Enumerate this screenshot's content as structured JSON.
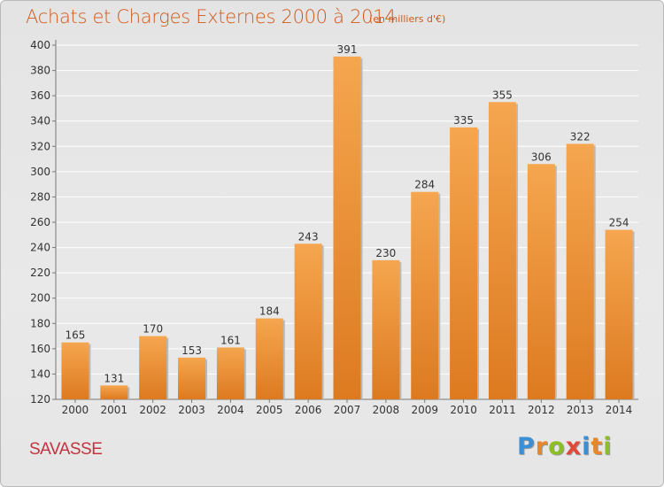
{
  "title": "Achats et Charges Externes 2000 à 2014",
  "unit_note": "(en milliers d'€)",
  "commune": "SAVASSE",
  "logo": {
    "letters": [
      "P",
      "r",
      "o",
      "x",
      "i",
      "t",
      "i"
    ],
    "colors": [
      "#3a8fd6",
      "#e8862b",
      "#8cbf26",
      "#e04a3a",
      "#3a8fd6",
      "#e8862b",
      "#8cbf26"
    ]
  },
  "colors": {
    "bar_top": "#f5a64f",
    "bar_bottom": "#dd7a20",
    "title": "#cf5a1b",
    "commune": "#c2343f"
  },
  "chart_data": {
    "type": "bar",
    "categories": [
      "2000",
      "2001",
      "2002",
      "2003",
      "2004",
      "2005",
      "2006",
      "2007",
      "2008",
      "2009",
      "2010",
      "2011",
      "2012",
      "2013",
      "2014"
    ],
    "values": [
      165,
      131,
      170,
      153,
      161,
      184,
      243,
      391,
      230,
      284,
      335,
      355,
      306,
      322,
      254
    ],
    "data_labels": [
      "165",
      "131",
      "170",
      "153",
      "161",
      "184",
      "243",
      "391",
      "230",
      "284",
      "335",
      "355",
      "306",
      "322",
      "254"
    ],
    "ylim": [
      120,
      400
    ],
    "yticks": [
      120,
      140,
      160,
      180,
      200,
      220,
      240,
      260,
      280,
      300,
      320,
      340,
      360,
      380,
      400
    ],
    "ytick_labels": [
      "120",
      "140",
      "160",
      "180",
      "200",
      "220",
      "240",
      "260",
      "280",
      "300",
      "320",
      "340",
      "360",
      "380",
      "400"
    ],
    "grid": true,
    "legend": "none"
  }
}
